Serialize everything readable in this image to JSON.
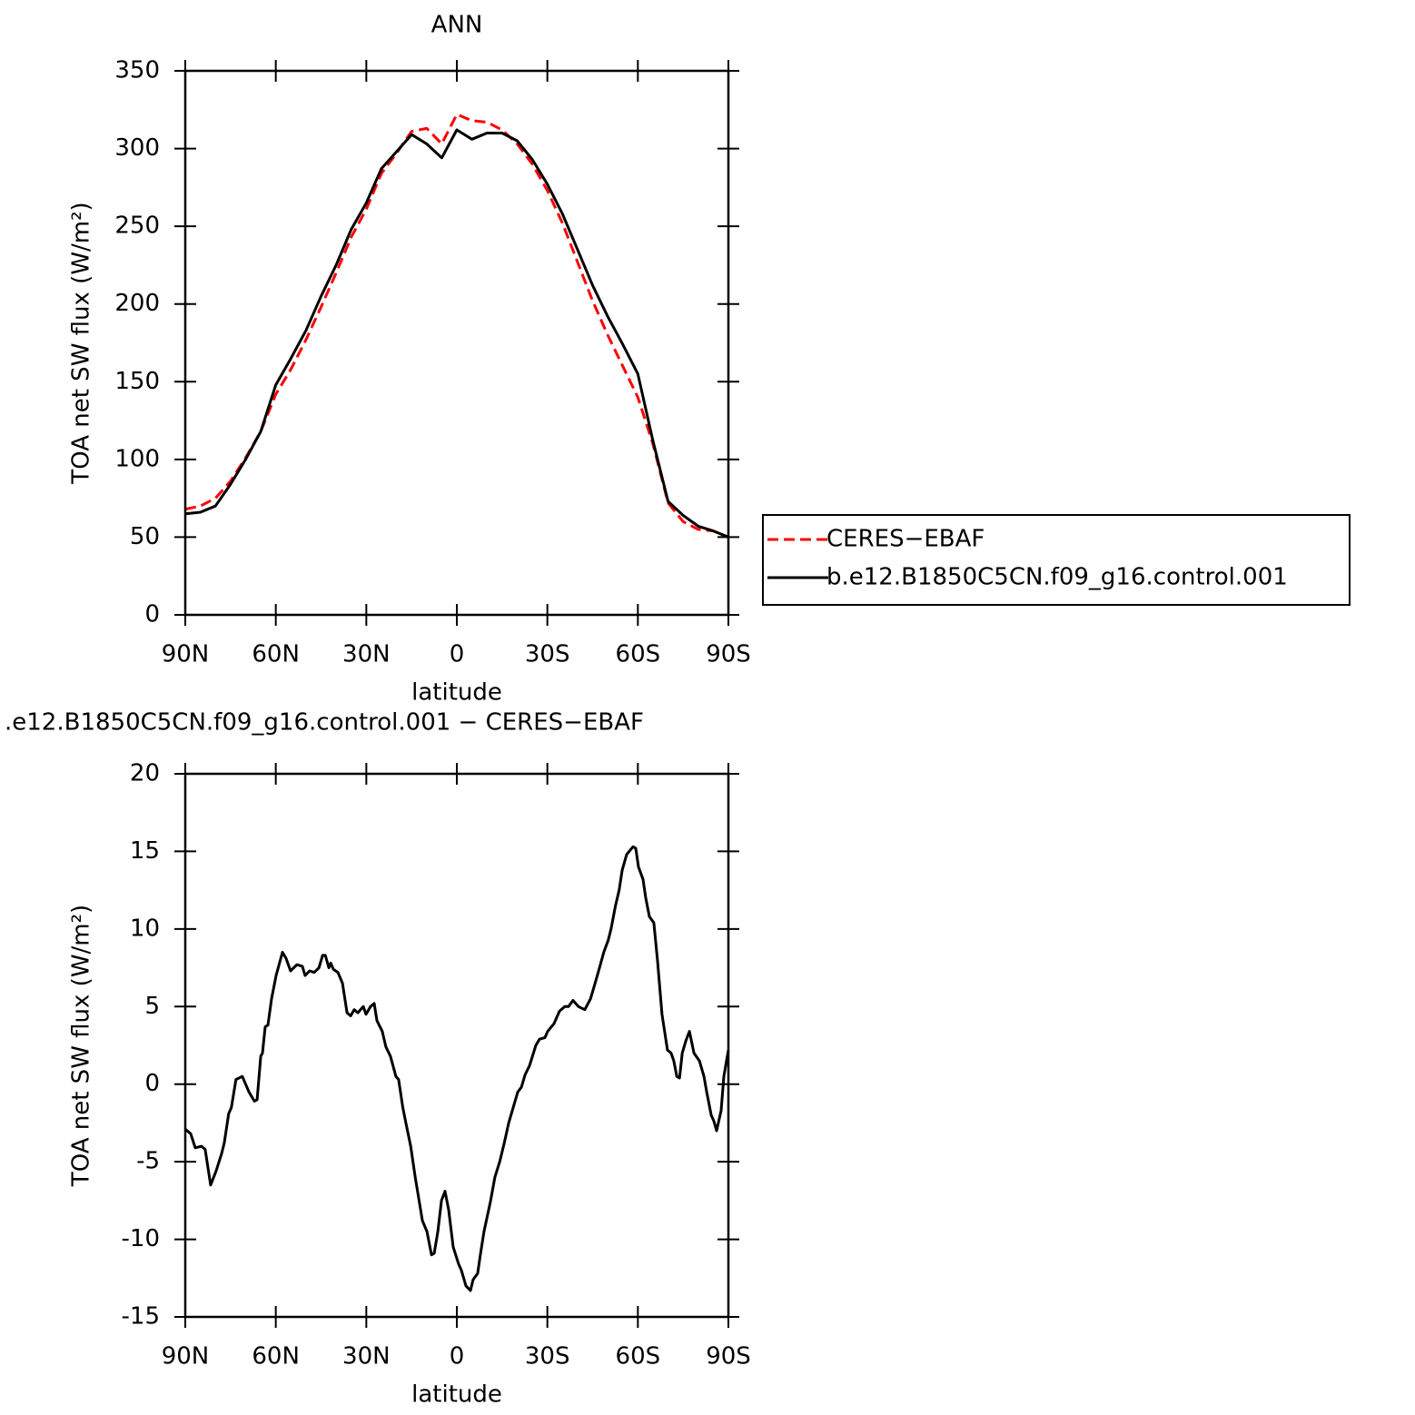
{
  "chart_data": [
    {
      "type": "line",
      "title": "ANN",
      "xlabel": "latitude",
      "ylabel": "TOA net SW flux (W/m²)",
      "x": [
        90,
        85,
        80,
        75,
        70,
        65,
        60,
        55,
        50,
        45,
        40,
        35,
        30,
        25,
        20,
        15,
        10,
        5,
        0,
        -5,
        -10,
        -15,
        -20,
        -25,
        -30,
        -35,
        -40,
        -45,
        -50,
        -55,
        -60,
        -65,
        -70,
        -75,
        -80,
        -85,
        -90
      ],
      "series": [
        {
          "name": "CERES−EBAF",
          "color": "#ff0000",
          "linestyle": "dashed",
          "values": [
            68,
            70,
            75,
            86,
            101,
            118,
            142,
            158,
            177,
            198,
            220,
            243,
            261,
            284,
            297,
            311,
            313,
            303,
            322,
            318,
            317,
            312,
            303,
            290,
            273,
            252,
            227,
            202,
            180,
            160,
            140,
            110,
            72,
            60,
            55,
            54,
            50
          ]
        },
        {
          "name": "b.e12.B1850C5CN.f09_g16.control.001",
          "color": "#000000",
          "linestyle": "solid",
          "values": [
            65,
            66,
            70,
            84,
            100,
            118,
            148,
            165,
            183,
            205,
            225,
            248,
            265,
            287,
            298,
            309,
            303,
            294,
            312,
            306,
            310,
            310,
            305,
            293,
            277,
            258,
            235,
            212,
            192,
            174,
            155,
            112,
            73,
            64,
            57,
            54,
            50
          ]
        }
      ],
      "xlim": [
        90,
        -90
      ],
      "xticks": [
        {
          "value": 90,
          "label": "90N"
        },
        {
          "value": 60,
          "label": "60N"
        },
        {
          "value": 30,
          "label": "30N"
        },
        0,
        {
          "value": -30,
          "label": "30S"
        },
        {
          "value": -60,
          "label": "60S"
        },
        {
          "value": -90,
          "label": "90S"
        }
      ],
      "ylim": [
        0,
        350
      ],
      "yticks": [
        0,
        50,
        100,
        150,
        200,
        250,
        300,
        350
      ],
      "legend": "right"
    },
    {
      "type": "line",
      "title": ".e12.B1850C5CN.f09_g16.control.001 − CERES−EBAF",
      "xlabel": "latitude",
      "ylabel": "TOA net SW flux (W/m²)",
      "x": [
        90,
        88.2,
        86.7,
        84.6,
        83.4,
        81.6,
        79.8,
        78.0,
        77.1,
        75.6,
        74.7,
        73.2,
        71.1,
        68.9,
        67.1,
        66.2,
        65.0,
        64.4,
        63.5,
        62.6,
        61.4,
        59.9,
        57.8,
        56.6,
        55.1,
        53.0,
        51.2,
        50.3,
        48.8,
        47.3,
        45.7,
        44.5,
        43.6,
        42.4,
        41.8,
        40.9,
        39.4,
        37.9,
        36.4,
        35.2,
        34.0,
        32.8,
        31.0,
        30.1,
        28.6,
        27.4,
        26.5,
        24.7,
        23.5,
        22.0,
        20.2,
        19.3,
        17.9,
        16.9,
        15.3,
        13.8,
        11.4,
        9.9,
        8.4,
        7.5,
        6.3,
        5.1,
        3.9,
        2.7,
        1.2,
        -0.6,
        -1.5,
        -3.0,
        -4.5,
        -5.4,
        -6.9,
        -7.8,
        -9.0,
        -11.1,
        -12.6,
        -14.2,
        -15.7,
        -17.2,
        -18.7,
        -20.2,
        -21.4,
        -22.6,
        -24.1,
        -26.2,
        -27.4,
        -29.2,
        -30.1,
        -32.2,
        -34.0,
        -35.8,
        -37.0,
        -38.5,
        -40.3,
        -42.4,
        -44.3,
        -45.8,
        -47.3,
        -48.7,
        -50.2,
        -51.1,
        -52.6,
        -53.8,
        -54.8,
        -56.3,
        -58.4,
        -59.3,
        -60.2,
        -61.7,
        -62.6,
        -63.8,
        -65.3,
        -66.5,
        -68.0,
        -69.8,
        -71.0,
        -71.9,
        -72.9,
        -73.8,
        -74.7,
        -75.9,
        -77.1,
        -78.6,
        -80.4,
        -81.9,
        -82.8,
        -84.3,
        -85.2,
        -86.1,
        -87.6,
        -88.5,
        -90
      ],
      "values": [
        -2.9,
        -3.2,
        -4.1,
        -4.0,
        -4.2,
        -6.5,
        -5.6,
        -4.5,
        -3.8,
        -1.9,
        -1.5,
        0.3,
        0.5,
        -0.5,
        -1.1,
        -1.0,
        1.8,
        2.0,
        3.7,
        3.8,
        5.5,
        7.0,
        8.5,
        8.1,
        7.3,
        7.7,
        7.6,
        7.0,
        7.3,
        7.2,
        7.5,
        8.3,
        8.3,
        7.5,
        7.8,
        7.4,
        7.2,
        6.5,
        4.6,
        4.4,
        4.8,
        4.6,
        5.0,
        4.5,
        5.0,
        5.2,
        4.1,
        3.4,
        2.4,
        1.8,
        0.5,
        0.3,
        -1.5,
        -2.5,
        -4.0,
        -6.0,
        -8.8,
        -9.5,
        -11.0,
        -10.9,
        -9.5,
        -7.5,
        -6.9,
        -8.1,
        -10.5,
        -11.6,
        -12.0,
        -13.0,
        -13.3,
        -12.6,
        -12.2,
        -11.0,
        -9.5,
        -7.6,
        -6.0,
        -5.0,
        -3.8,
        -2.5,
        -1.5,
        -0.5,
        -0.2,
        0.6,
        1.2,
        2.5,
        2.9,
        3.0,
        3.4,
        3.9,
        4.7,
        5.0,
        5.0,
        5.4,
        5.0,
        4.8,
        5.5,
        6.5,
        7.5,
        8.5,
        9.3,
        10.0,
        11.5,
        12.5,
        13.8,
        14.8,
        15.3,
        15.2,
        14.0,
        13.2,
        12.0,
        10.8,
        10.4,
        8.0,
        4.5,
        2.2,
        2.0,
        1.5,
        0.5,
        0.4,
        2.0,
        2.8,
        3.4,
        2.0,
        1.5,
        0.5,
        -0.5,
        -2.0,
        -2.4,
        -3.0,
        -1.7,
        0.5,
        2.2
      ],
      "color": "#000000",
      "xlim": [
        90,
        -90
      ],
      "xticks": [
        {
          "value": 90,
          "label": "90N"
        },
        {
          "value": 60,
          "label": "60N"
        },
        {
          "value": 30,
          "label": "30N"
        },
        0,
        {
          "value": -30,
          "label": "30S"
        },
        {
          "value": -60,
          "label": "60S"
        },
        {
          "value": -90,
          "label": "90S"
        }
      ],
      "ylim": [
        -15,
        20
      ],
      "yticks": [
        -15,
        -10,
        -5,
        0,
        5,
        10,
        15,
        20
      ]
    }
  ]
}
